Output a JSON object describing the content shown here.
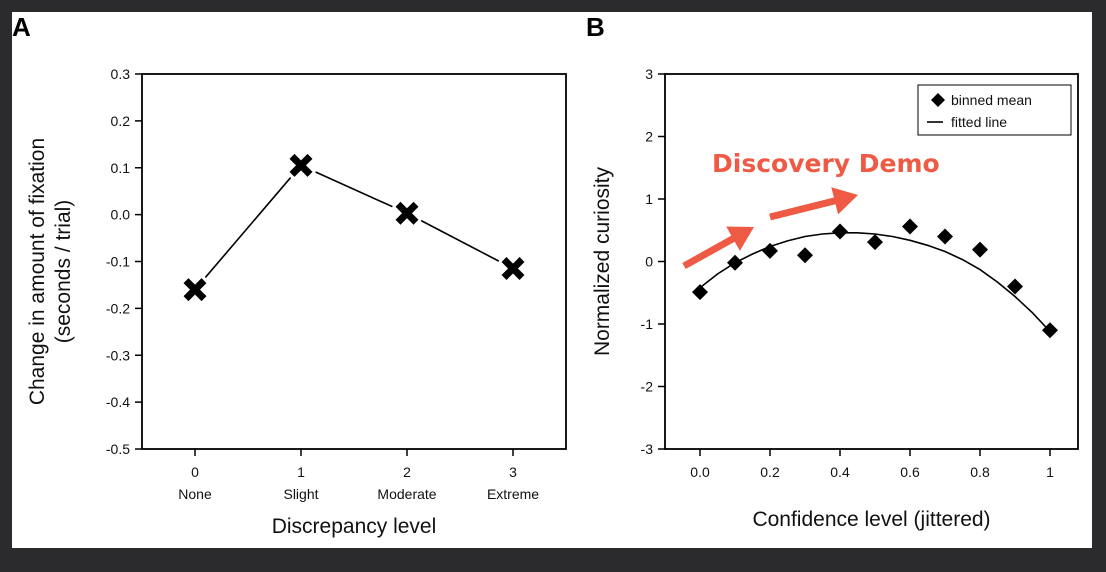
{
  "panels": {
    "a_label": "A",
    "b_label": "B"
  },
  "chart_data": [
    {
      "type": "line",
      "panel": "A",
      "title": "",
      "xlabel": "Discrepancy level",
      "ylabel_line1": "Change in amount of fixation",
      "ylabel_line2": "(seconds / trial)",
      "x": [
        0,
        1,
        2,
        3
      ],
      "x_tick_labels": [
        "0",
        "1",
        "2",
        "3"
      ],
      "x_category_labels": [
        "None",
        "Slight",
        "Moderate",
        "Extreme"
      ],
      "values": [
        -0.16,
        0.105,
        0.003,
        -0.115
      ],
      "ylim": [
        -0.5,
        0.3
      ],
      "xlim": [
        -0.5,
        3.5
      ],
      "y_ticks": [
        "0.3",
        "0.2",
        "0.1",
        "0.0",
        "-0.1",
        "-0.2",
        "-0.3",
        "-0.4",
        "-0.5"
      ],
      "marker": "x",
      "grid": false
    },
    {
      "type": "scatter",
      "panel": "B",
      "title": "",
      "xlabel": "Confidence level (jittered)",
      "ylabel": "Normalized curiosity",
      "xlim": [
        -0.1,
        1.08
      ],
      "ylim": [
        -3,
        3
      ],
      "x_ticks": [
        "0.0",
        "0.2",
        "0.4",
        "0.6",
        "0.8",
        "1"
      ],
      "y_ticks": [
        "3",
        "2",
        "1",
        "0",
        "-1",
        "-2",
        "-3"
      ],
      "series": [
        {
          "name": "binned mean",
          "marker": "diamond",
          "x": [
            0.0,
            0.1,
            0.2,
            0.3,
            0.4,
            0.5,
            0.6,
            0.7,
            0.8,
            0.9,
            1.0
          ],
          "values": [
            -0.49,
            -0.02,
            0.17,
            0.1,
            0.48,
            0.31,
            0.56,
            0.4,
            0.19,
            -0.4,
            -1.1
          ]
        },
        {
          "name": "fitted line",
          "marker": "line",
          "x": [
            0.0,
            0.05,
            0.1,
            0.15,
            0.2,
            0.25,
            0.3,
            0.35,
            0.4,
            0.45,
            0.5,
            0.55,
            0.6,
            0.65,
            0.7,
            0.75,
            0.8,
            0.85,
            0.9,
            0.95,
            1.0
          ],
          "values": [
            -0.42,
            -0.2,
            -0.02,
            0.12,
            0.24,
            0.33,
            0.4,
            0.44,
            0.46,
            0.46,
            0.44,
            0.4,
            0.34,
            0.26,
            0.16,
            0.03,
            -0.13,
            -0.33,
            -0.56,
            -0.82,
            -1.12
          ]
        }
      ],
      "legend": {
        "position": "top-right",
        "entries": [
          "binned mean",
          "fitted line"
        ]
      },
      "annotation": {
        "text": "Discovery Demo",
        "color": "#ef5a45"
      },
      "grid": false
    }
  ]
}
